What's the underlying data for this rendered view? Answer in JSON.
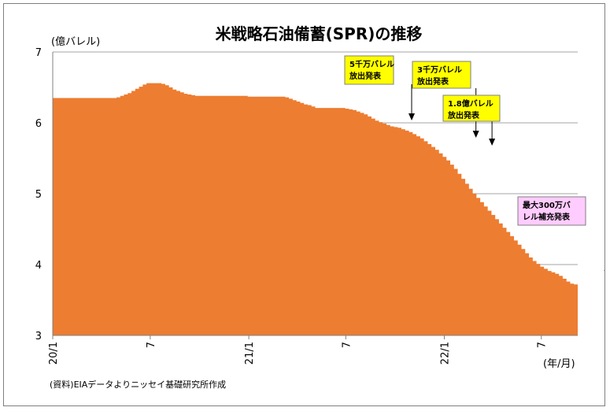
{
  "chart_data": {
    "type": "area",
    "title": "米戦略石油備蓄(SPR)の推移",
    "ylabel": "(億バレル)",
    "xlabel": "(年/月)",
    "ylim": [
      3,
      7
    ],
    "yticks": [
      "3",
      "4",
      "5",
      "6",
      "7"
    ],
    "grid": true,
    "color": "#ED7D31",
    "x_ticks": [
      "20/1",
      "7",
      "21/1",
      "7",
      "22/1",
      "7"
    ],
    "source": "(資料)EIAデータよりニッセイ基礎研究所作成",
    "x_start": "2020-01",
    "x_weekly": [
      6.35,
      6.35,
      6.35,
      6.35,
      6.35,
      6.35,
      6.35,
      6.35,
      6.35,
      6.35,
      6.35,
      6.35,
      6.35,
      6.35,
      6.35,
      6.35,
      6.35,
      6.36,
      6.38,
      6.4,
      6.42,
      6.45,
      6.48,
      6.51,
      6.54,
      6.56,
      6.56,
      6.56,
      6.56,
      6.55,
      6.53,
      6.5,
      6.47,
      6.45,
      6.43,
      6.41,
      6.4,
      6.39,
      6.38,
      6.38,
      6.38,
      6.38,
      6.38,
      6.38,
      6.38,
      6.38,
      6.38,
      6.38,
      6.38,
      6.38,
      6.38,
      6.38,
      6.37,
      6.37,
      6.37,
      6.37,
      6.37,
      6.37,
      6.37,
      6.37,
      6.37,
      6.37,
      6.36,
      6.34,
      6.32,
      6.3,
      6.28,
      6.26,
      6.25,
      6.23,
      6.21,
      6.21,
      6.21,
      6.21,
      6.21,
      6.21,
      6.21,
      6.21,
      6.2,
      6.19,
      6.18,
      6.16,
      6.14,
      6.12,
      6.09,
      6.06,
      6.03,
      6.01,
      5.99,
      5.97,
      5.95,
      5.94,
      5.93,
      5.91,
      5.89,
      5.87,
      5.84,
      5.81,
      5.78,
      5.74,
      5.7,
      5.66,
      5.62,
      5.57,
      5.52,
      5.47,
      5.41,
      5.35,
      5.28,
      5.21,
      5.14,
      5.07,
      5.0,
      4.94,
      4.88,
      4.82,
      4.76,
      4.7,
      4.64,
      4.58,
      4.52,
      4.46,
      4.4,
      4.34,
      4.28,
      4.22,
      4.16,
      4.1,
      4.05,
      4.01,
      3.97,
      3.94,
      3.91,
      3.89,
      3.87,
      3.84,
      3.8,
      3.76,
      3.73,
      3.72
    ],
    "annotations": [
      {
        "lines": [
          "5千万バレル",
          "放出発表"
        ],
        "bg": "#FFFF00",
        "date": "2021-11"
      },
      {
        "lines": [
          "3千万バレル",
          "放出発表"
        ],
        "bg": "#FFFF00",
        "date": "2022-03"
      },
      {
        "lines": [
          "1.8億バレル",
          "放出発表"
        ],
        "bg": "#FFFF00",
        "date": "2022-03-31"
      },
      {
        "lines": [
          "最大300万バ",
          "レル補充発表"
        ],
        "bg": "#FFCCFF",
        "date": "2022-11"
      }
    ]
  }
}
